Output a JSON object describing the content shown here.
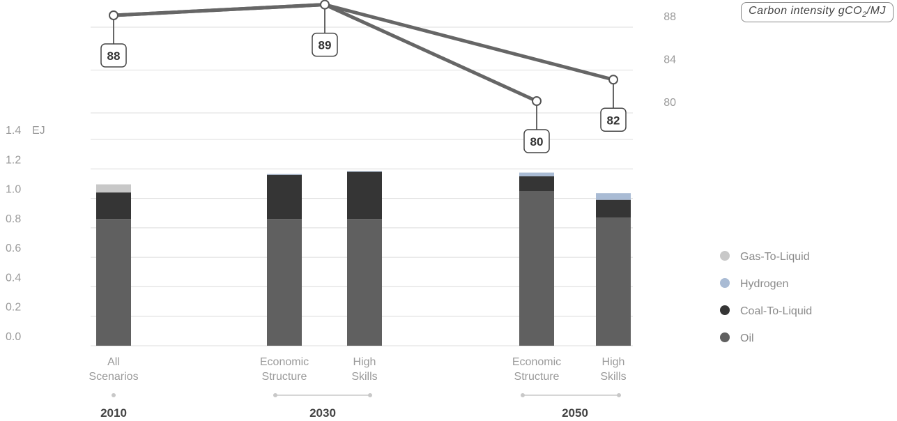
{
  "chart_data": [
    {
      "type": "line",
      "title": "",
      "unit_label": "Carbon intensity gCO2/MJ",
      "unit_label_main": "Carbon intensity gCO",
      "unit_label_sub": "2",
      "unit_label_end": "/MJ",
      "yticks": [
        "88",
        "84",
        "80"
      ],
      "ylim": [
        76,
        89
      ],
      "series": [
        {
          "path": [
            "2010 All Scenarios",
            "2030 Economic Structure / High Skills",
            "2050 Economic Structure"
          ],
          "values": [
            88,
            89,
            80
          ]
        },
        {
          "path": [
            "2010 All Scenarios",
            "2030 Economic Structure / High Skills",
            "2050 High Skills"
          ],
          "values": [
            88,
            89,
            82
          ]
        }
      ],
      "data_labels": [
        {
          "category": 0,
          "text": "88"
        },
        {
          "category": 1,
          "text": "89"
        },
        {
          "category": 3,
          "text": "80"
        },
        {
          "category": 4,
          "text": "82"
        }
      ]
    },
    {
      "type": "bar",
      "stacked": true,
      "ylabel": "EJ",
      "ylim": [
        0,
        1.4
      ],
      "yticks": [
        "0.0",
        "0.2",
        "0.4",
        "0.6",
        "0.8",
        "1.0",
        "1.2",
        "1.4"
      ],
      "categories": [
        {
          "label": [
            "All",
            "Scenarios"
          ],
          "group": 0
        },
        {
          "label": [
            "Economic",
            "Structure"
          ],
          "group": 1
        },
        {
          "label": [
            "High",
            "Skills"
          ],
          "group": 1
        },
        {
          "label": [
            "Economic",
            "Structure"
          ],
          "group": 2
        },
        {
          "label": [
            "High",
            "Skills"
          ],
          "group": 2
        }
      ],
      "groups": [
        "2010",
        "2030",
        "2050"
      ],
      "series": [
        {
          "name": "Oil",
          "color": "#606060",
          "values": [
            0.86,
            0.86,
            0.86,
            1.05,
            0.87
          ]
        },
        {
          "name": "Coal-To-Liquid",
          "color": "#353535",
          "values": [
            0.18,
            0.3,
            0.32,
            0.1,
            0.12
          ]
        },
        {
          "name": "Hydrogen",
          "color": "#a9bbd4",
          "values": [
            0.0,
            0.005,
            0.005,
            0.025,
            0.045
          ]
        },
        {
          "name": "Gas-To-Liquid",
          "color": "#c8c8c8",
          "values": [
            0.055,
            0.0,
            0.0,
            0.0,
            0.0
          ]
        }
      ],
      "legend_order": [
        "Gas-To-Liquid",
        "Hydrogen",
        "Coal-To-Liquid",
        "Oil"
      ],
      "legend_position": "right",
      "grid": true
    }
  ]
}
